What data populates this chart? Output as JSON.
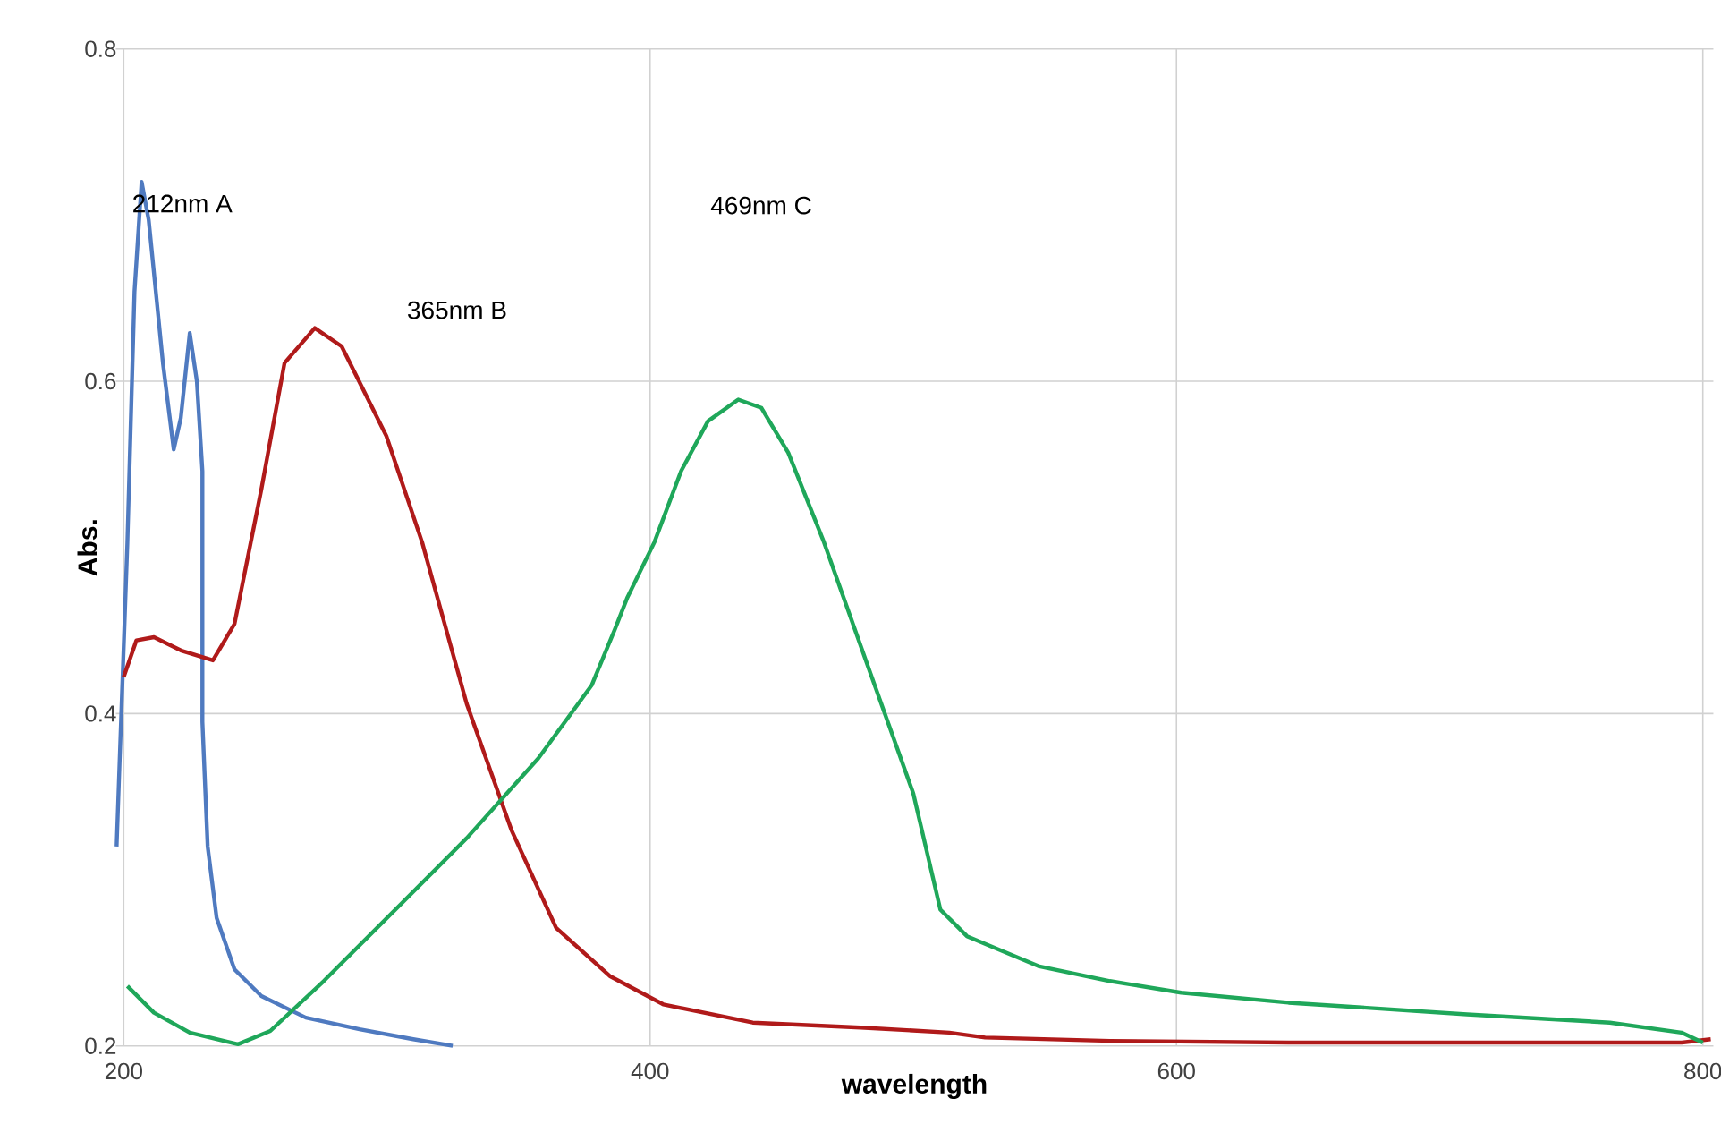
{
  "chart_data": {
    "type": "line",
    "xlabel": "wavelength",
    "ylabel": "Abs.",
    "xlim": [
      197,
      804
    ],
    "ylim": [
      0.2,
      0.8
    ],
    "xticks": [
      200,
      400,
      600,
      800
    ],
    "yticks": [
      0.2,
      0.4,
      0.6,
      0.8
    ],
    "grid": true,
    "annotations": [
      "212nm A",
      "365nm B",
      "469nm C"
    ],
    "series": [
      {
        "color": "#4f7ac0",
        "x": [
          197.3,
          201.4,
          204.1,
          206.8,
          209.5,
          214.9,
          219,
          221.7,
          225.1,
          227.8,
          229.9,
          229.9,
          231.9,
          235.3,
          242.1,
          252.3,
          269.2,
          289.6,
          310,
          325
        ],
        "values": [
          0.32,
          0.503,
          0.654,
          0.72,
          0.697,
          0.611,
          0.559,
          0.578,
          0.629,
          0.6,
          0.546,
          0.395,
          0.32,
          0.277,
          0.246,
          0.23,
          0.217,
          0.21,
          0.204,
          0.2
        ]
      },
      {
        "color": "#b01a1a",
        "x": [
          200,
          204.8,
          211.5,
          221.7,
          233.9,
          242.1,
          252.3,
          261.1,
          272.6,
          282.8,
          299.8,
          313.4,
          330.3,
          347.3,
          364.3,
          384.7,
          405,
          439,
          480,
          513.7,
          527.3,
          574.8,
          642.6,
          710.4,
          792,
          803
        ],
        "values": [
          0.422,
          0.444,
          0.446,
          0.438,
          0.432,
          0.454,
          0.535,
          0.611,
          0.632,
          0.621,
          0.567,
          0.503,
          0.406,
          0.33,
          0.271,
          0.242,
          0.225,
          0.214,
          0.211,
          0.208,
          0.205,
          0.203,
          0.202,
          0.202,
          0.202,
          0.204
        ]
      },
      {
        "color": "#1fa75a",
        "x": [
          201.4,
          211.5,
          225.1,
          243.4,
          255.7,
          276,
          303.2,
          330.3,
          357.5,
          377.8,
          386.7,
          391.4,
          401.6,
          411.8,
          422,
          433.5,
          442.3,
          452.5,
          466.1,
          483.1,
          500,
          510.3,
          520.4,
          547.5,
          574.7,
          601.8,
          642.6,
          710.4,
          764.7,
          791.9,
          800
        ],
        "values": [
          0.236,
          0.22,
          0.208,
          0.201,
          0.209,
          0.239,
          0.282,
          0.325,
          0.373,
          0.417,
          0.451,
          0.47,
          0.503,
          0.546,
          0.576,
          0.589,
          0.584,
          0.557,
          0.503,
          0.427,
          0.352,
          0.282,
          0.266,
          0.248,
          0.239,
          0.232,
          0.226,
          0.219,
          0.214,
          0.208,
          0.202
        ]
      }
    ]
  }
}
